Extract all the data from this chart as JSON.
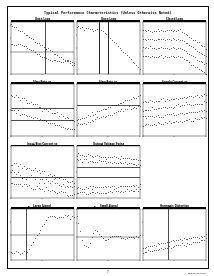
{
  "title": "Typical Performance Characteristics (Unless Otherwise Noted)",
  "page_num": "7",
  "background": "#ffffff",
  "border_color": "#000000",
  "plots": [
    {
      "row": 0,
      "col": 0,
      "title1": "Open Loop",
      "title2": "Frequency Response",
      "curve_type": "gain_phase_1",
      "has_vline": true,
      "vline_pos": 0.55
    },
    {
      "row": 0,
      "col": 1,
      "title1": "Open Loop",
      "title2": "Frequency Response",
      "curve_type": "gain_phase_2",
      "has_vline": true,
      "vline_pos": 0.5
    },
    {
      "row": 0,
      "col": 2,
      "title1": "Closed Loop",
      "title2": "Frequency Response",
      "curve_type": "closed_loop",
      "has_vline": false,
      "vline_pos": 0
    },
    {
      "row": 1,
      "col": 0,
      "title1": "Slew Rate vs",
      "title2": "Temperature",
      "curve_type": "slew_temp",
      "has_vline": false,
      "vline_pos": 0
    },
    {
      "row": 1,
      "col": 1,
      "title1": "Slew Rate vs",
      "title2": "Supply Voltage",
      "curve_type": "slew_supply",
      "has_vline": false,
      "vline_pos": 0
    },
    {
      "row": 1,
      "col": 2,
      "title1": "Supply Current vs",
      "title2": "Supply Voltage",
      "curve_type": "supply_current",
      "has_vline": false,
      "vline_pos": 0
    },
    {
      "row": 2,
      "col": 0,
      "title1": "Input Bias Current vs",
      "title2": "Temperature",
      "curve_type": "bias_temp",
      "has_vline": false,
      "vline_pos": 0
    },
    {
      "row": 2,
      "col": 1,
      "title1": "Output Voltage Swing",
      "title2": "vs Temperature",
      "curve_type": "output_temp",
      "has_vline": false,
      "vline_pos": 0
    },
    {
      "row": 3,
      "col": 0,
      "title1": "Large Signal",
      "title2": "Transient Response",
      "curve_type": "transient_large",
      "has_vline": true,
      "vline_pos": 0.25
    },
    {
      "row": 3,
      "col": 1,
      "title1": "Small Signal",
      "title2": "Transient Response",
      "curve_type": "transient_small",
      "has_vline": false,
      "vline_pos": 0
    },
    {
      "row": 3,
      "col": 2,
      "title1": "Harmonic Distortion",
      "title2": "vs Frequency",
      "curve_type": "harmonic",
      "has_vline": true,
      "vline_pos": 0.4
    }
  ]
}
